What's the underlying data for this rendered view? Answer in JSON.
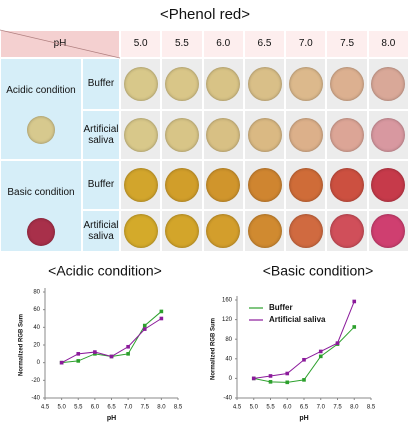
{
  "title": "<Phenol red>",
  "table": {
    "header_label": "pH",
    "columns": [
      "5.0",
      "5.5",
      "6.0",
      "6.5",
      "7.0",
      "7.5",
      "8.0"
    ],
    "groups": [
      {
        "label": "Acidic condition",
        "rows": [
          "Buffer",
          "Artificial saliva"
        ]
      },
      {
        "label": "Basic condition",
        "rows": [
          "Buffer",
          "Artificial saliva"
        ]
      }
    ]
  },
  "chart_data": [
    {
      "type": "line",
      "title": "<Acidic condition>",
      "x_label": "pH",
      "y_label": "Normalized RGB Sum",
      "x": [
        5,
        5.5,
        6,
        6.5,
        7,
        7.5,
        8
      ],
      "xlim": [
        4.5,
        8.5
      ],
      "xticks": [
        4.5,
        {
          "value": 5,
          "label": "5.0"
        },
        5.5,
        {
          "value": 6,
          "label": "6.0"
        },
        6.5,
        {
          "value": 7,
          "label": "7.0"
        },
        7.5,
        {
          "value": 8,
          "label": "8.0"
        },
        8.5
      ],
      "ylim": [
        -40,
        80
      ],
      "yticks": [
        -40,
        -20,
        0,
        20,
        40,
        60,
        80
      ],
      "series": [
        {
          "color": "#2ca02c",
          "values": [
            0,
            2,
            10,
            7,
            10,
            42,
            58
          ]
        },
        {
          "color": "#8b1a9b",
          "values": [
            0,
            10,
            12,
            7,
            18,
            38,
            50
          ]
        }
      ]
    },
    {
      "type": "line",
      "title": "<Basic condition>",
      "x_label": "pH",
      "y_label": "Normalized RGB Sum",
      "x": [
        5,
        5.5,
        6,
        6.5,
        7,
        7.5,
        8
      ],
      "xlim": [
        4.5,
        8.5
      ],
      "xticks": [
        4.5,
        {
          "value": 5,
          "label": "5.0"
        },
        5.5,
        {
          "value": 6,
          "label": "6.0"
        },
        6.5,
        {
          "value": 7,
          "label": "7.0"
        },
        7.5,
        {
          "value": 8,
          "label": "8.0"
        },
        8.5
      ],
      "ylim": [
        -40,
        160
      ],
      "yticks": [
        -40,
        0,
        40,
        80,
        120,
        160
      ],
      "legend": "upper left",
      "series": [
        {
          "name": "Buffer",
          "color": "#2ca02c",
          "values": [
            0,
            -7,
            -8,
            -3,
            45,
            70,
            105
          ]
        },
        {
          "name": "Artificial saliva",
          "color": "#8b1a9b",
          "values": [
            0,
            5,
            10,
            38,
            55,
            72,
            157
          ]
        }
      ]
    }
  ]
}
